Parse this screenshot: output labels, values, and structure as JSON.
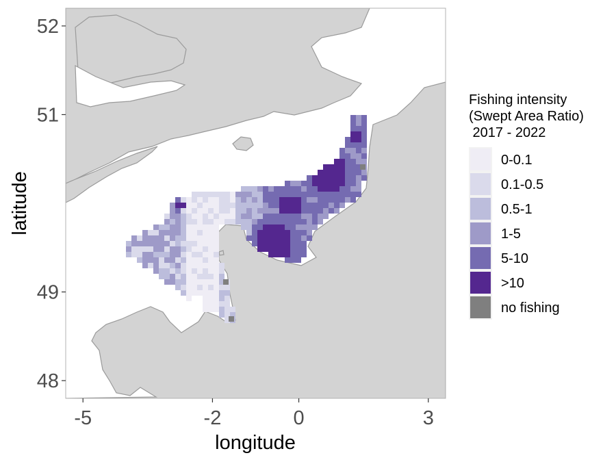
{
  "chart_data": {
    "type": "heatmap",
    "title": "",
    "xlabel": "longitude",
    "ylabel": "latitude",
    "x_ticks": [
      "-5",
      "-2",
      "0",
      "3"
    ],
    "x_tick_values": [
      -5,
      -2,
      0,
      3
    ],
    "y_ticks": [
      "52",
      "51",
      "49",
      "48"
    ],
    "y_tick_values": [
      52,
      51,
      49,
      48
    ],
    "xlim": [
      -5.4,
      3.4
    ],
    "ylim": [
      47.8,
      52.2
    ],
    "grid": false,
    "legend_position": "right",
    "legend": {
      "title_lines": [
        "Fishing intensity",
        "(Swept Area Ratio)",
        " 2017 - 2022"
      ],
      "entries": [
        {
          "label": "0-0.1",
          "color": "#efedf5"
        },
        {
          "label": "0.1-0.5",
          "color": "#dadaeb"
        },
        {
          "label": "0.5-1",
          "color": "#bcbddc"
        },
        {
          "label": "1-5",
          "color": "#9e9ac8"
        },
        {
          "label": "5-10",
          "color": "#756bb1"
        },
        {
          "label": ">10",
          "color": "#54278f"
        },
        {
          "label": "no fishing",
          "color": "#7f7f7f"
        }
      ]
    },
    "land_color": "#d3d3d3",
    "sea_color": "#ffffff"
  }
}
